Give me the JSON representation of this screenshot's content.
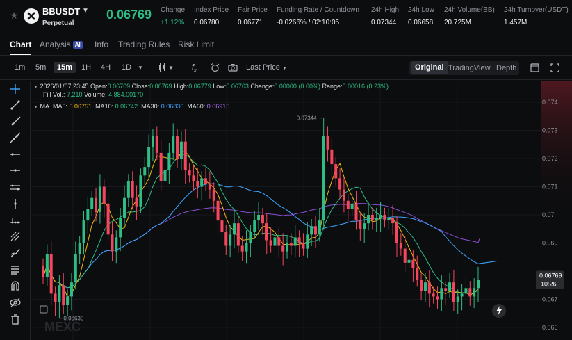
{
  "header": {
    "symbol": "BBUSDT",
    "contract_type": "Perpetual",
    "last_price": "0.06769",
    "stats": [
      {
        "label": "Change",
        "value": "+1.12%",
        "up": true
      },
      {
        "label": "Index Price",
        "value": "0.06780"
      },
      {
        "label": "Fair Price",
        "value": "0.06771"
      },
      {
        "label": "Funding Rate / Countdown",
        "value": "-0.0266% / 02:10:05"
      },
      {
        "label": "24h High",
        "value": "0.07344"
      },
      {
        "label": "24h Low",
        "value": "0.06658"
      },
      {
        "label": "24h Volume(BB)",
        "value": "20.725M"
      },
      {
        "label": "24h Turnover(USDT)",
        "value": "1.457M"
      }
    ]
  },
  "tabs": [
    {
      "label": "Chart",
      "active": true
    },
    {
      "label": "Analysis",
      "badge": "AI"
    },
    {
      "label": "Info"
    },
    {
      "label": "Trading Rules"
    },
    {
      "label": "Risk Limit"
    }
  ],
  "toolbar": {
    "timeframes": [
      "1m",
      "5m",
      "15m",
      "1H",
      "4H",
      "1D"
    ],
    "active_timeframe": "15m",
    "price_type": "Last Price",
    "views": [
      "Original",
      "TradingView",
      "Depth"
    ],
    "active_view": "Original"
  },
  "legend": {
    "datetime": "2026/01/07 23:45",
    "open_label": "Open:",
    "open": "0.06769",
    "close_label": "Close:",
    "close": "0.06769",
    "high_label": "High:",
    "high": "0.06779",
    "low_label": "Low:",
    "low": "0.06763",
    "change_label": "Change:",
    "change": "0.00000 (0.00%)",
    "range_label": "Range:",
    "range": "0.00016 (0.23%)",
    "fill_vol_label": "Fill Vol.:",
    "fill_vol": "7,210",
    "volume_label": "Volume:",
    "volume": "4,884.00170",
    "ma_title": "MA",
    "ma": [
      {
        "label": "MA5:",
        "value": "0.06751",
        "color": "#f0b90b"
      },
      {
        "label": "MA10:",
        "value": "0.06742",
        "color": "#2ebd85"
      },
      {
        "label": "MA30:",
        "value": "0.06836",
        "color": "#3ea6ff"
      },
      {
        "label": "MA60:",
        "value": "0.06915",
        "color": "#b26cff"
      }
    ]
  },
  "chart_data": {
    "type": "candlestick",
    "y_ticks": [
      "0.074",
      "0.073",
      "0.072",
      "0.071",
      "0.07",
      "0.069",
      "0.067",
      "0.066"
    ],
    "ylim": [
      0.06573,
      0.07446
    ],
    "max_label": "0.07344",
    "min_label": "0.06633",
    "current_price_label": "0.06769",
    "countdown_label": "10:26",
    "colors": {
      "up": "#2ebd85",
      "down": "#f6465d",
      "ma5": "#f0b90b",
      "ma10": "#2ebd85",
      "ma30": "#3ea6ff",
      "ma60": "#8b4fd6"
    }
  },
  "watermark": "MEXC"
}
